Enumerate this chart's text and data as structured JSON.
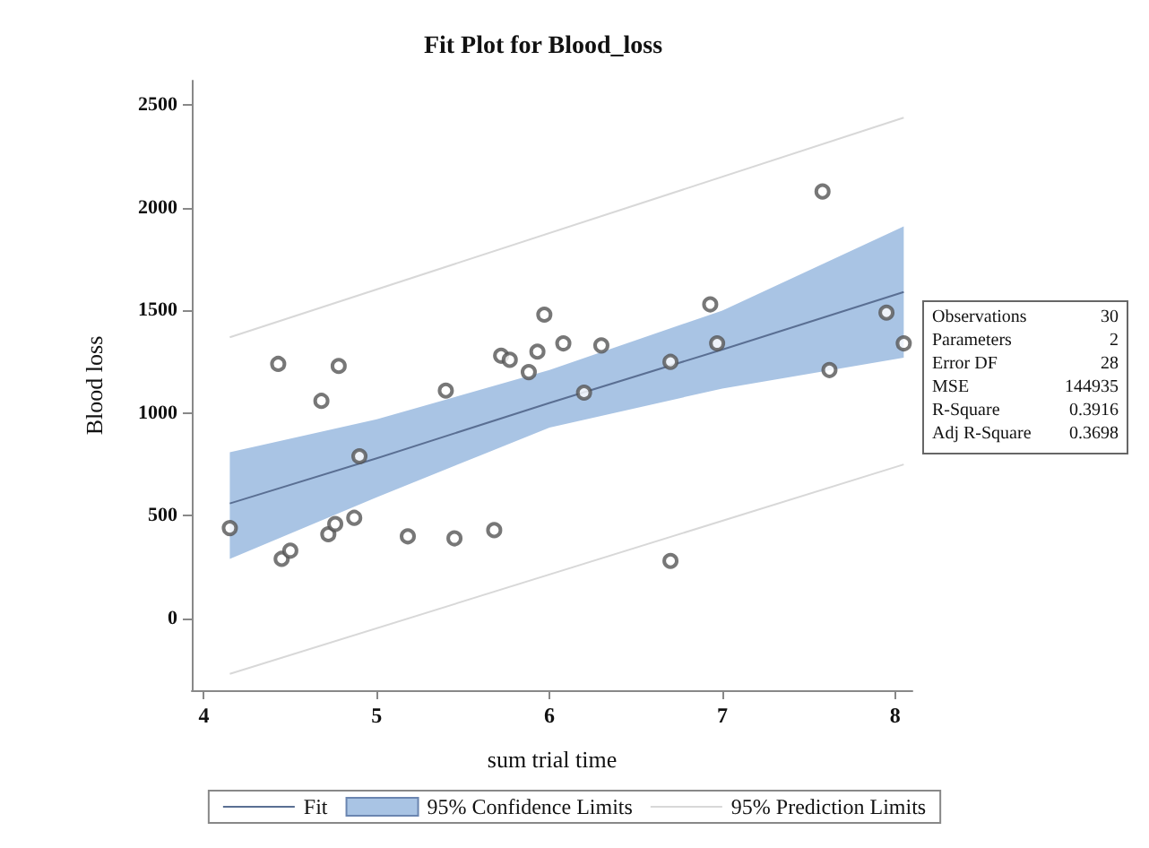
{
  "chart_data": {
    "type": "scatter",
    "title": "Fit Plot for Blood_loss",
    "xlabel": "sum trial time",
    "ylabel": "Blood loss",
    "xlim": [
      3.93,
      8.1
    ],
    "ylim": [
      -350,
      2620
    ],
    "xticks": [
      4,
      5,
      6,
      7,
      8
    ],
    "yticks": [
      0,
      500,
      1000,
      1500,
      2000,
      2500
    ],
    "grid": false,
    "legend": "bottom",
    "marker": "circle",
    "series": [
      {
        "type": "line",
        "name": "Fit",
        "color": "#5a6f93",
        "marker": "none",
        "x": [
          4.15,
          5,
          6,
          7,
          8.05
        ],
        "values": [
          560,
          780,
          1050,
          1310,
          1590
        ],
        "lower": [
          290,
          590,
          930,
          1120,
          1270
        ],
        "upper": [
          810,
          970,
          1210,
          1500,
          1910
        ]
      },
      {
        "type": "area",
        "name": "95% Confidence Limits",
        "color": "#a9c4e4"
      },
      {
        "type": "line",
        "name": "95% Prediction Limits",
        "color": "#d8d8d8",
        "marker": "none",
        "x": [
          4.15,
          8.05
        ],
        "values": [
          1370,
          2440
        ]
      },
      {
        "type": "line",
        "color": "#d8d8d8",
        "marker": "none",
        "x": [
          4.15,
          8.05
        ],
        "values": [
          -270,
          750
        ]
      },
      {
        "color": "#555555",
        "x": [
          4.15,
          4.43,
          4.45,
          4.5,
          4.68,
          4.72,
          4.76,
          4.78,
          4.87,
          4.9,
          5.18,
          5.4,
          5.45,
          5.68,
          5.72,
          5.77,
          5.88,
          5.93,
          5.97,
          6.08,
          6.2,
          6.3,
          6.7,
          6.7,
          6.93,
          6.97,
          7.58,
          7.62,
          7.95,
          8.05
        ],
        "values": [
          440,
          1240,
          290,
          330,
          1060,
          410,
          460,
          1230,
          490,
          790,
          400,
          1110,
          390,
          430,
          1280,
          1260,
          1200,
          1300,
          1480,
          1340,
          1100,
          1330,
          1250,
          280,
          1530,
          1340,
          2080,
          1210,
          1490,
          1340
        ]
      }
    ],
    "annotations": [
      "Observations",
      "30",
      "Parameters",
      "2",
      "Error DF",
      "28",
      "MSE",
      "144935",
      "R-Square",
      "0.3916",
      "Adj R-Square",
      "0.3698"
    ]
  }
}
